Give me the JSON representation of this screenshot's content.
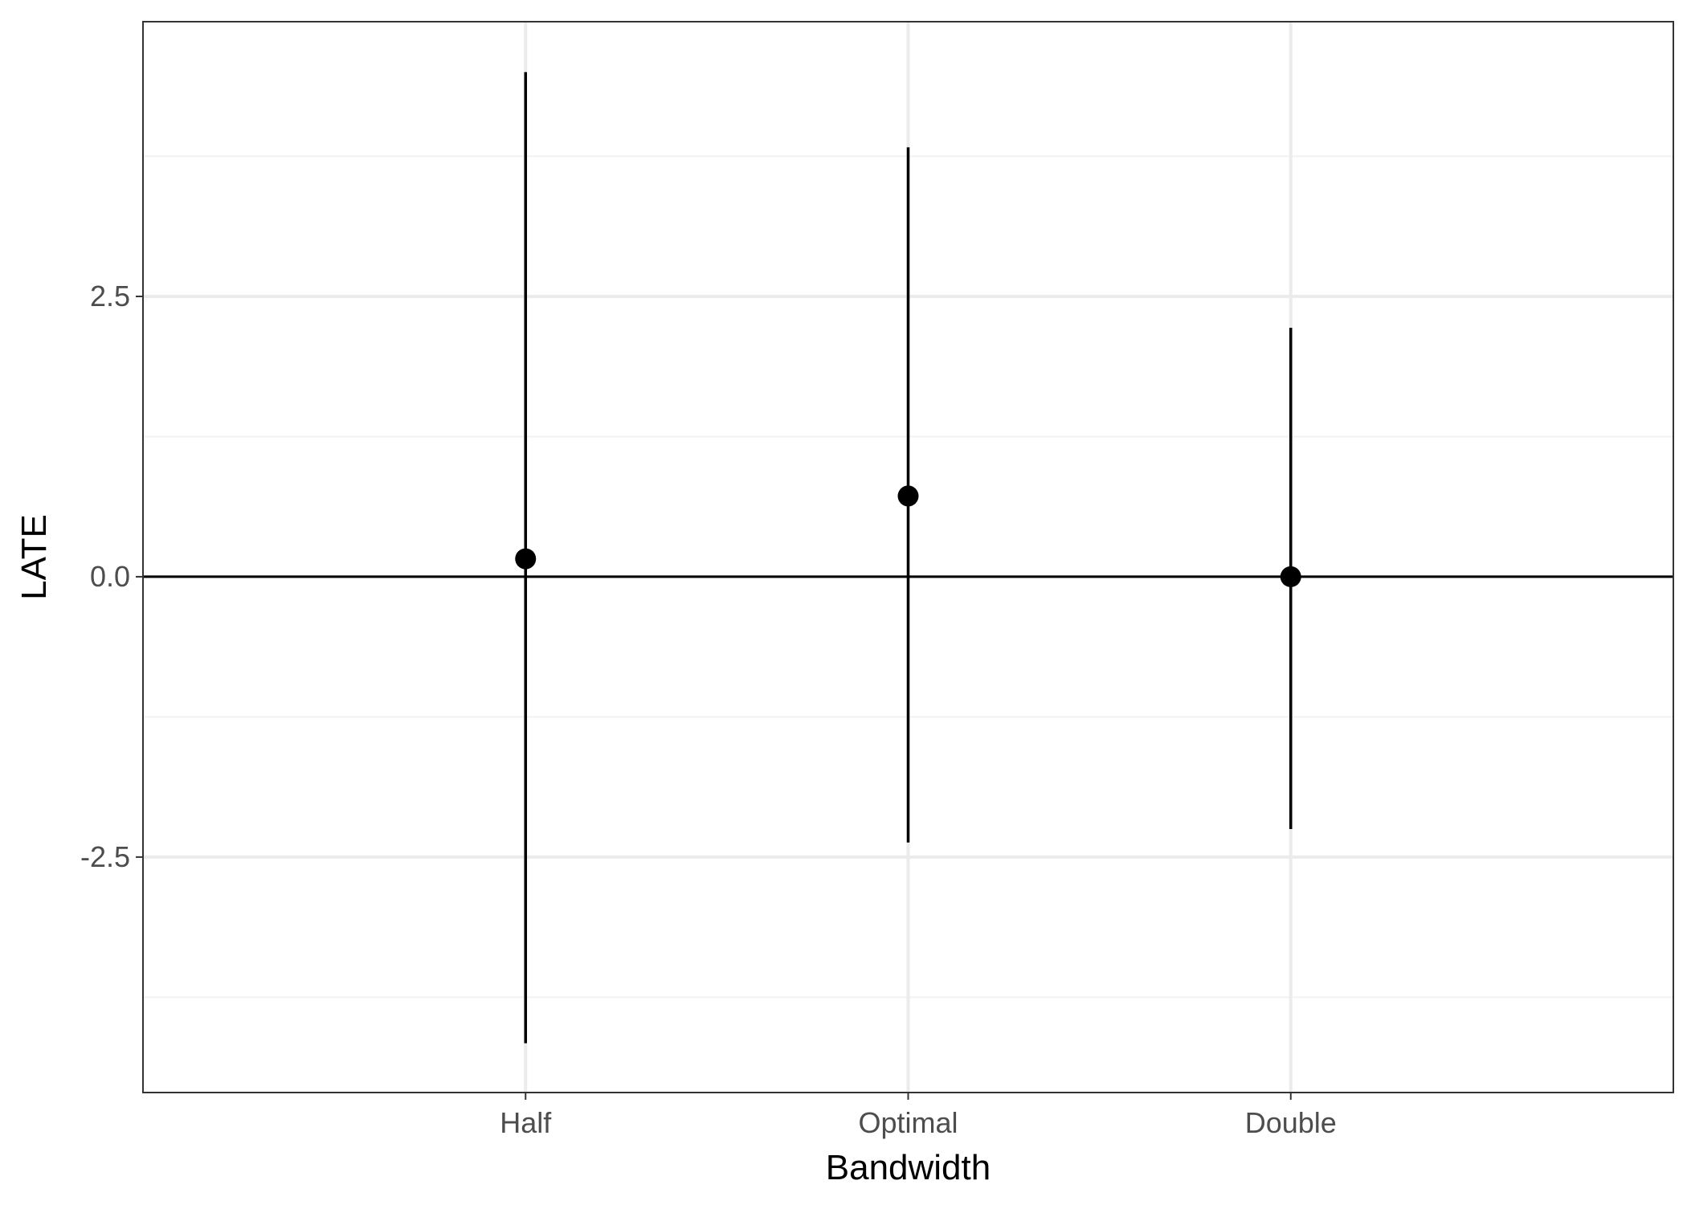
{
  "chart_data": {
    "type": "scatter",
    "title": "",
    "xlabel": "Bandwidth",
    "ylabel": "LATE",
    "categories": [
      "Half",
      "Optimal",
      "Double"
    ],
    "points": [
      {
        "x": "Half",
        "y": 0.16,
        "lower": -4.16,
        "upper": 4.5
      },
      {
        "x": "Optimal",
        "y": 0.72,
        "lower": -2.37,
        "upper": 3.83
      },
      {
        "x": "Double",
        "y": 0.0,
        "lower": -2.25,
        "upper": 2.22
      }
    ],
    "ylim": [
      -4.6,
      4.95
    ],
    "yticks": [
      -2.5,
      0.0,
      2.5
    ],
    "ytick_labels": [
      "-2.5",
      "0.0",
      "2.5"
    ],
    "yminor": [
      -3.75,
      -1.25,
      1.25,
      3.75
    ],
    "reference_line": 0,
    "grid": true,
    "legend": "none",
    "colors": {
      "points": "#000000",
      "errorbars": "#000000",
      "reference_line": "#000000",
      "grid_major": "#ebebeb",
      "grid_minor": "#f2f2f2",
      "panel_border": "#333333"
    }
  }
}
